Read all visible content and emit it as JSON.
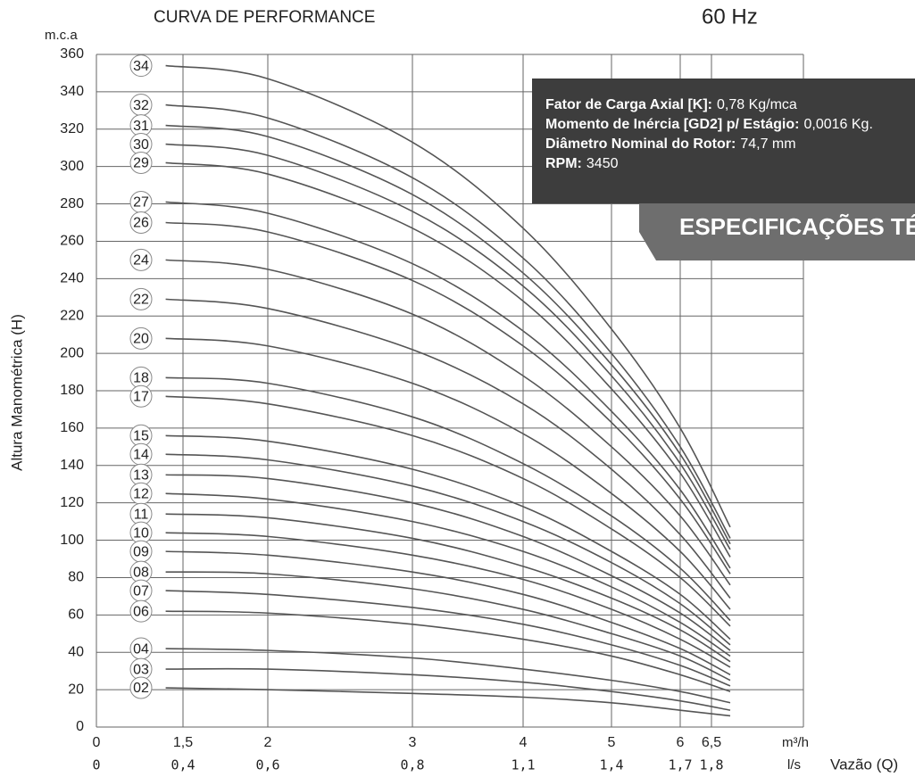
{
  "chart_data": {
    "type": "line",
    "title": "CURVA DE PERFORMANCE",
    "subtitle": "60 Hz",
    "y_unit": "m.c.a",
    "y_label": "Altura Manométrica (H)",
    "x_label": "Vazão (Q)",
    "x_unit": "m³/h",
    "x2_unit": "l/s",
    "ylim": [
      0,
      360
    ],
    "yticks": [
      0,
      20,
      40,
      60,
      80,
      100,
      120,
      140,
      160,
      180,
      200,
      220,
      240,
      260,
      280,
      300,
      320,
      340,
      360
    ],
    "xticks": [
      0,
      {
        "value": 1.5,
        "label": "1,5"
      },
      2,
      3,
      4,
      5,
      6,
      {
        "value": 6.5,
        "label": "6,5"
      }
    ],
    "x2ticks": [
      0,
      {
        "value": 0.4,
        "label": "0,4"
      },
      {
        "value": 0.6,
        "label": "0,6"
      },
      {
        "value": 0.8,
        "label": "0,8"
      },
      {
        "value": 1.1,
        "label": "1,1"
      },
      {
        "value": 1.4,
        "label": "1,4"
      },
      {
        "value": 1.7,
        "label": "1,7"
      },
      {
        "value": 1.8,
        "label": "1,8"
      }
    ],
    "grid": true,
    "color": "#555555",
    "x": [
      1.2,
      2,
      3,
      4,
      5,
      6,
      6.8
    ],
    "series": [
      {
        "name": "34",
        "values": [
          354,
          347,
          313,
          267,
          213,
          160,
          107
        ]
      },
      {
        "name": "32",
        "values": [
          333,
          326,
          294,
          251,
          200,
          150,
          101
        ]
      },
      {
        "name": "31",
        "values": [
          322,
          316,
          285,
          243,
          194,
          146,
          98
        ]
      },
      {
        "name": "30",
        "values": [
          312,
          306,
          276,
          236,
          188,
          141,
          95
        ]
      },
      {
        "name": "29",
        "values": [
          302,
          296,
          267,
          228,
          181,
          136,
          91
        ]
      },
      {
        "name": "27",
        "values": [
          281,
          275,
          248,
          212,
          169,
          127,
          85
        ]
      },
      {
        "name": "26",
        "values": [
          270,
          265,
          239,
          204,
          163,
          122,
          82
        ]
      },
      {
        "name": "24",
        "values": [
          250,
          245,
          221,
          188,
          150,
          113,
          76
        ]
      },
      {
        "name": "22",
        "values": [
          229,
          224,
          202,
          173,
          138,
          103,
          69
        ]
      },
      {
        "name": "20",
        "values": [
          208,
          204,
          184,
          157,
          125,
          94,
          63
        ]
      },
      {
        "name": "18",
        "values": [
          187,
          184,
          166,
          141,
          113,
          85,
          57
        ]
      },
      {
        "name": "17",
        "values": [
          177,
          173,
          156,
          133,
          106,
          80,
          54
        ]
      },
      {
        "name": "15",
        "values": [
          156,
          153,
          138,
          118,
          94,
          71,
          47
        ]
      },
      {
        "name": "14",
        "values": [
          146,
          143,
          129,
          110,
          88,
          66,
          44
        ]
      },
      {
        "name": "13",
        "values": [
          135,
          133,
          120,
          102,
          81,
          61,
          41
        ]
      },
      {
        "name": "12",
        "values": [
          125,
          122,
          110,
          94,
          75,
          56,
          38
        ]
      },
      {
        "name": "11",
        "values": [
          114,
          112,
          101,
          86,
          69,
          52,
          35
        ]
      },
      {
        "name": "10",
        "values": [
          104,
          102,
          92,
          79,
          63,
          47,
          32
        ]
      },
      {
        "name": "09",
        "values": [
          94,
          92,
          83,
          71,
          56,
          42,
          28
        ]
      },
      {
        "name": "08",
        "values": [
          83,
          82,
          74,
          63,
          50,
          38,
          25
        ]
      },
      {
        "name": "07",
        "values": [
          73,
          71,
          64,
          55,
          44,
          33,
          22
        ]
      },
      {
        "name": "06",
        "values": [
          62,
          61,
          55,
          47,
          38,
          28,
          19
        ]
      },
      {
        "name": "04",
        "values": [
          42,
          41,
          37,
          31,
          25,
          19,
          13
        ]
      },
      {
        "name": "03",
        "values": [
          31,
          31,
          28,
          24,
          19,
          14,
          9
        ]
      },
      {
        "name": "02",
        "values": [
          21,
          20,
          18,
          16,
          13,
          9,
          6
        ]
      }
    ]
  },
  "info_box": {
    "lines": [
      {
        "label": "Fator de Carga Axial [K]:",
        "value": "0,78 Kg/mca"
      },
      {
        "label": "Momento de Inércia [GD2] p/ Estágio:",
        "value": "0,0016 Kg."
      },
      {
        "label": "Diâmetro Nominal do Rotor:",
        "value": "74,7 mm"
      },
      {
        "label": "RPM:",
        "value": "3450"
      }
    ],
    "banner": "ESPECIFICAÇÕES TÉC"
  }
}
